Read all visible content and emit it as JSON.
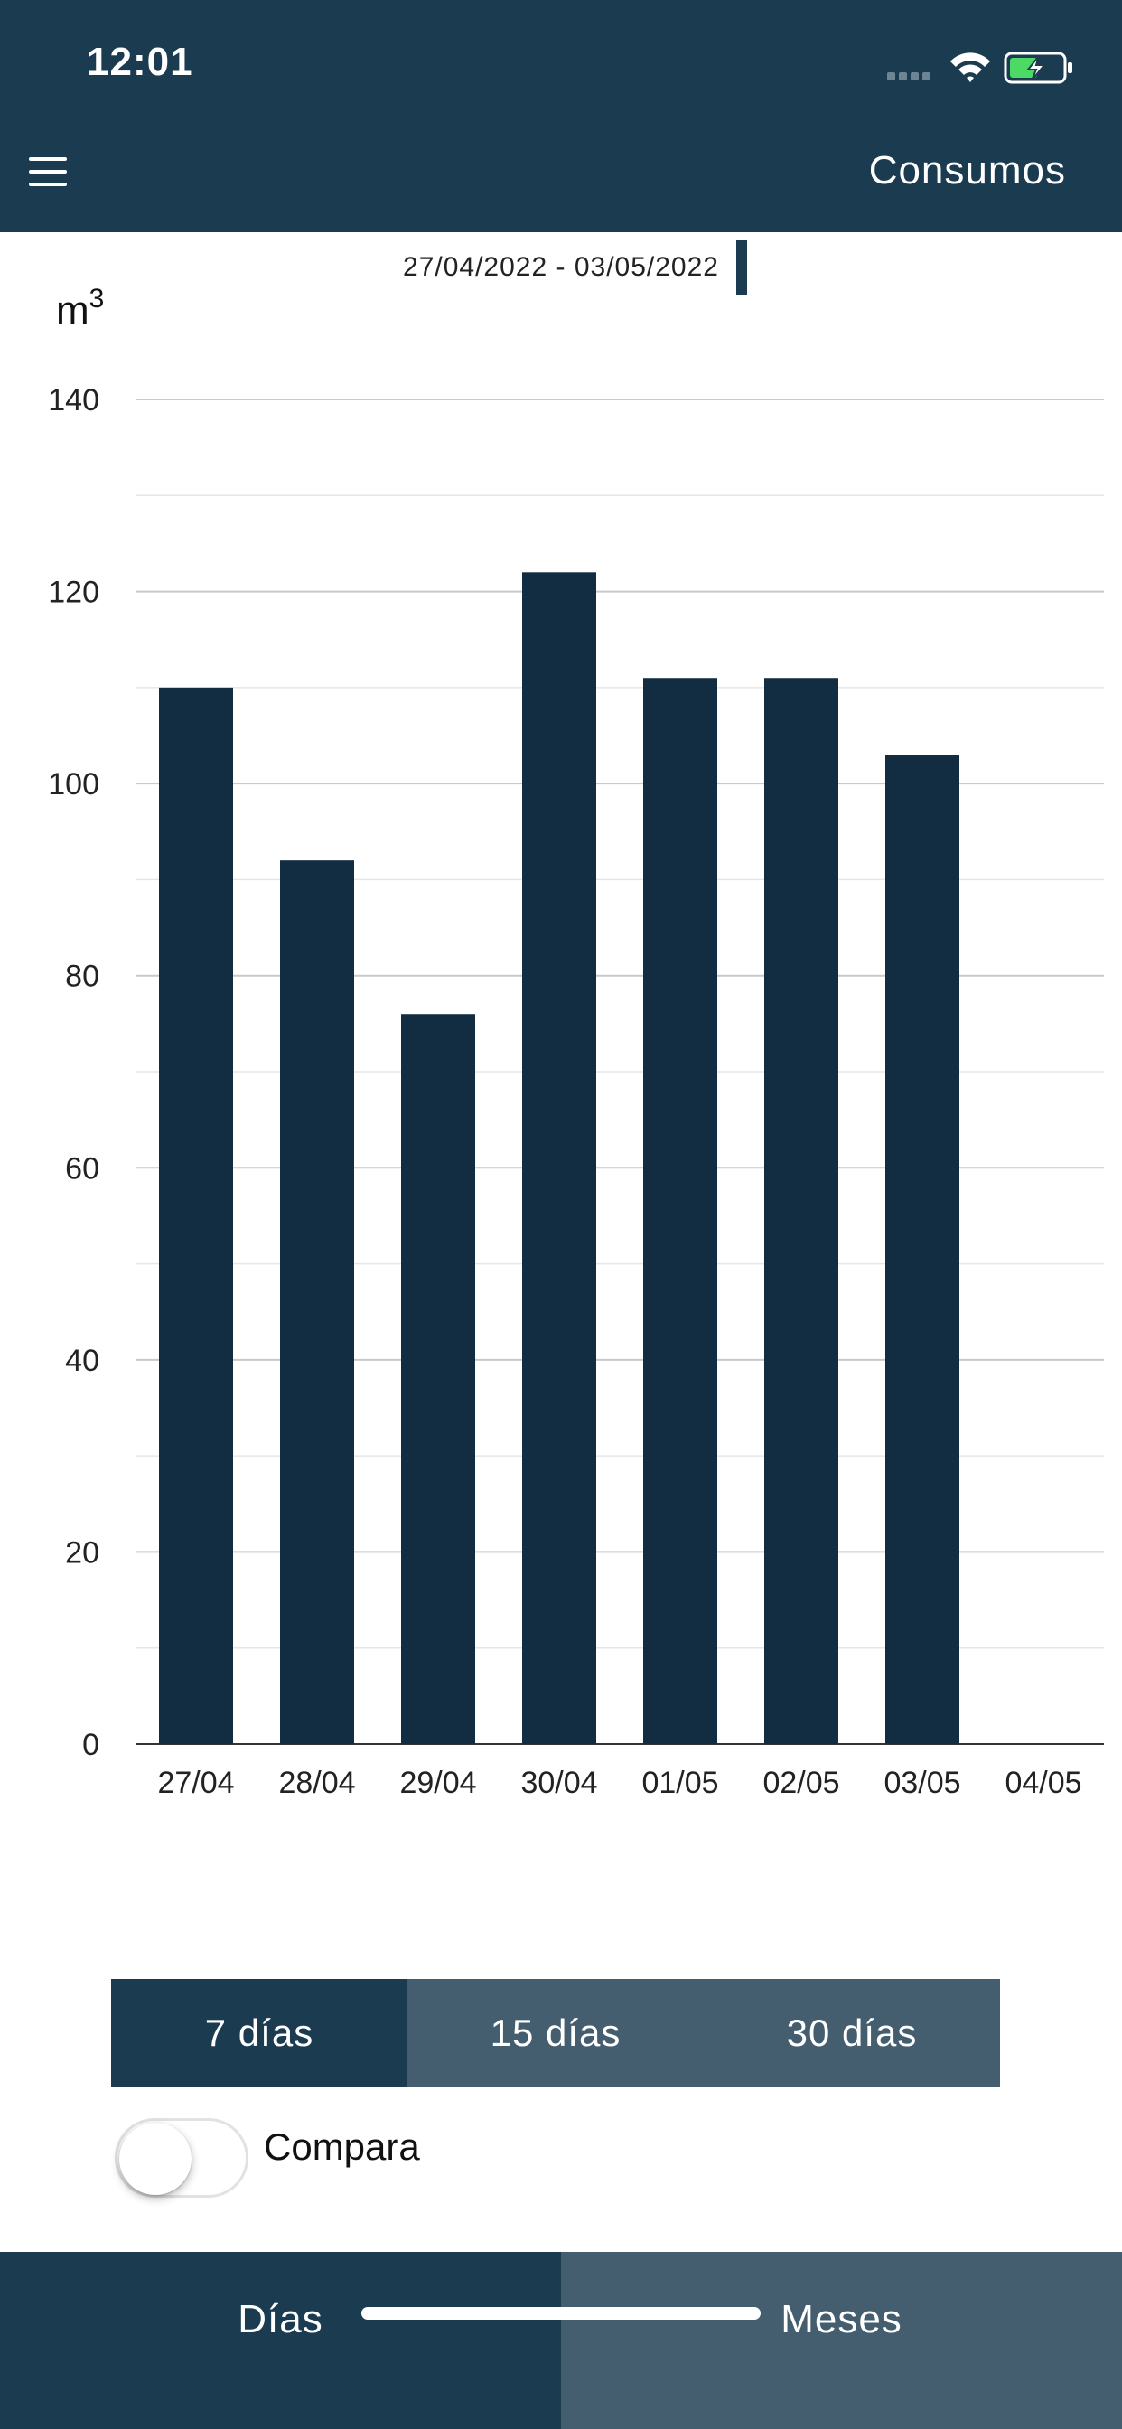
{
  "status_bar": {
    "time": "12:01"
  },
  "header": {
    "title": "Consumos"
  },
  "range": {
    "label": "27/04/2022 - 03/05/2022"
  },
  "colors": {
    "header_bg": "#1b3c50",
    "bar": "#122d42",
    "segment_inactive": "#455e6f",
    "battery_green": "#4cd964"
  },
  "chart_data": {
    "type": "bar",
    "unit_label": "m",
    "unit_superscript": "3",
    "categories": [
      "27/04",
      "28/04",
      "29/04",
      "30/04",
      "01/05",
      "02/05",
      "03/05",
      "04/05"
    ],
    "values": [
      110,
      92,
      76,
      122,
      111,
      111,
      103,
      null
    ],
    "ylim": [
      0,
      140
    ],
    "yticks": [
      "0",
      "20",
      "40",
      "60",
      "80",
      "100",
      "120",
      "140"
    ],
    "grid": true
  },
  "segments": [
    {
      "label": "7 días",
      "active": true
    },
    {
      "label": "15 días",
      "active": false
    },
    {
      "label": "30 días",
      "active": false
    }
  ],
  "compare": {
    "label": "Compara",
    "on": false
  },
  "tabs": [
    {
      "label": "Días",
      "active": true
    },
    {
      "label": "Meses",
      "active": false
    }
  ]
}
